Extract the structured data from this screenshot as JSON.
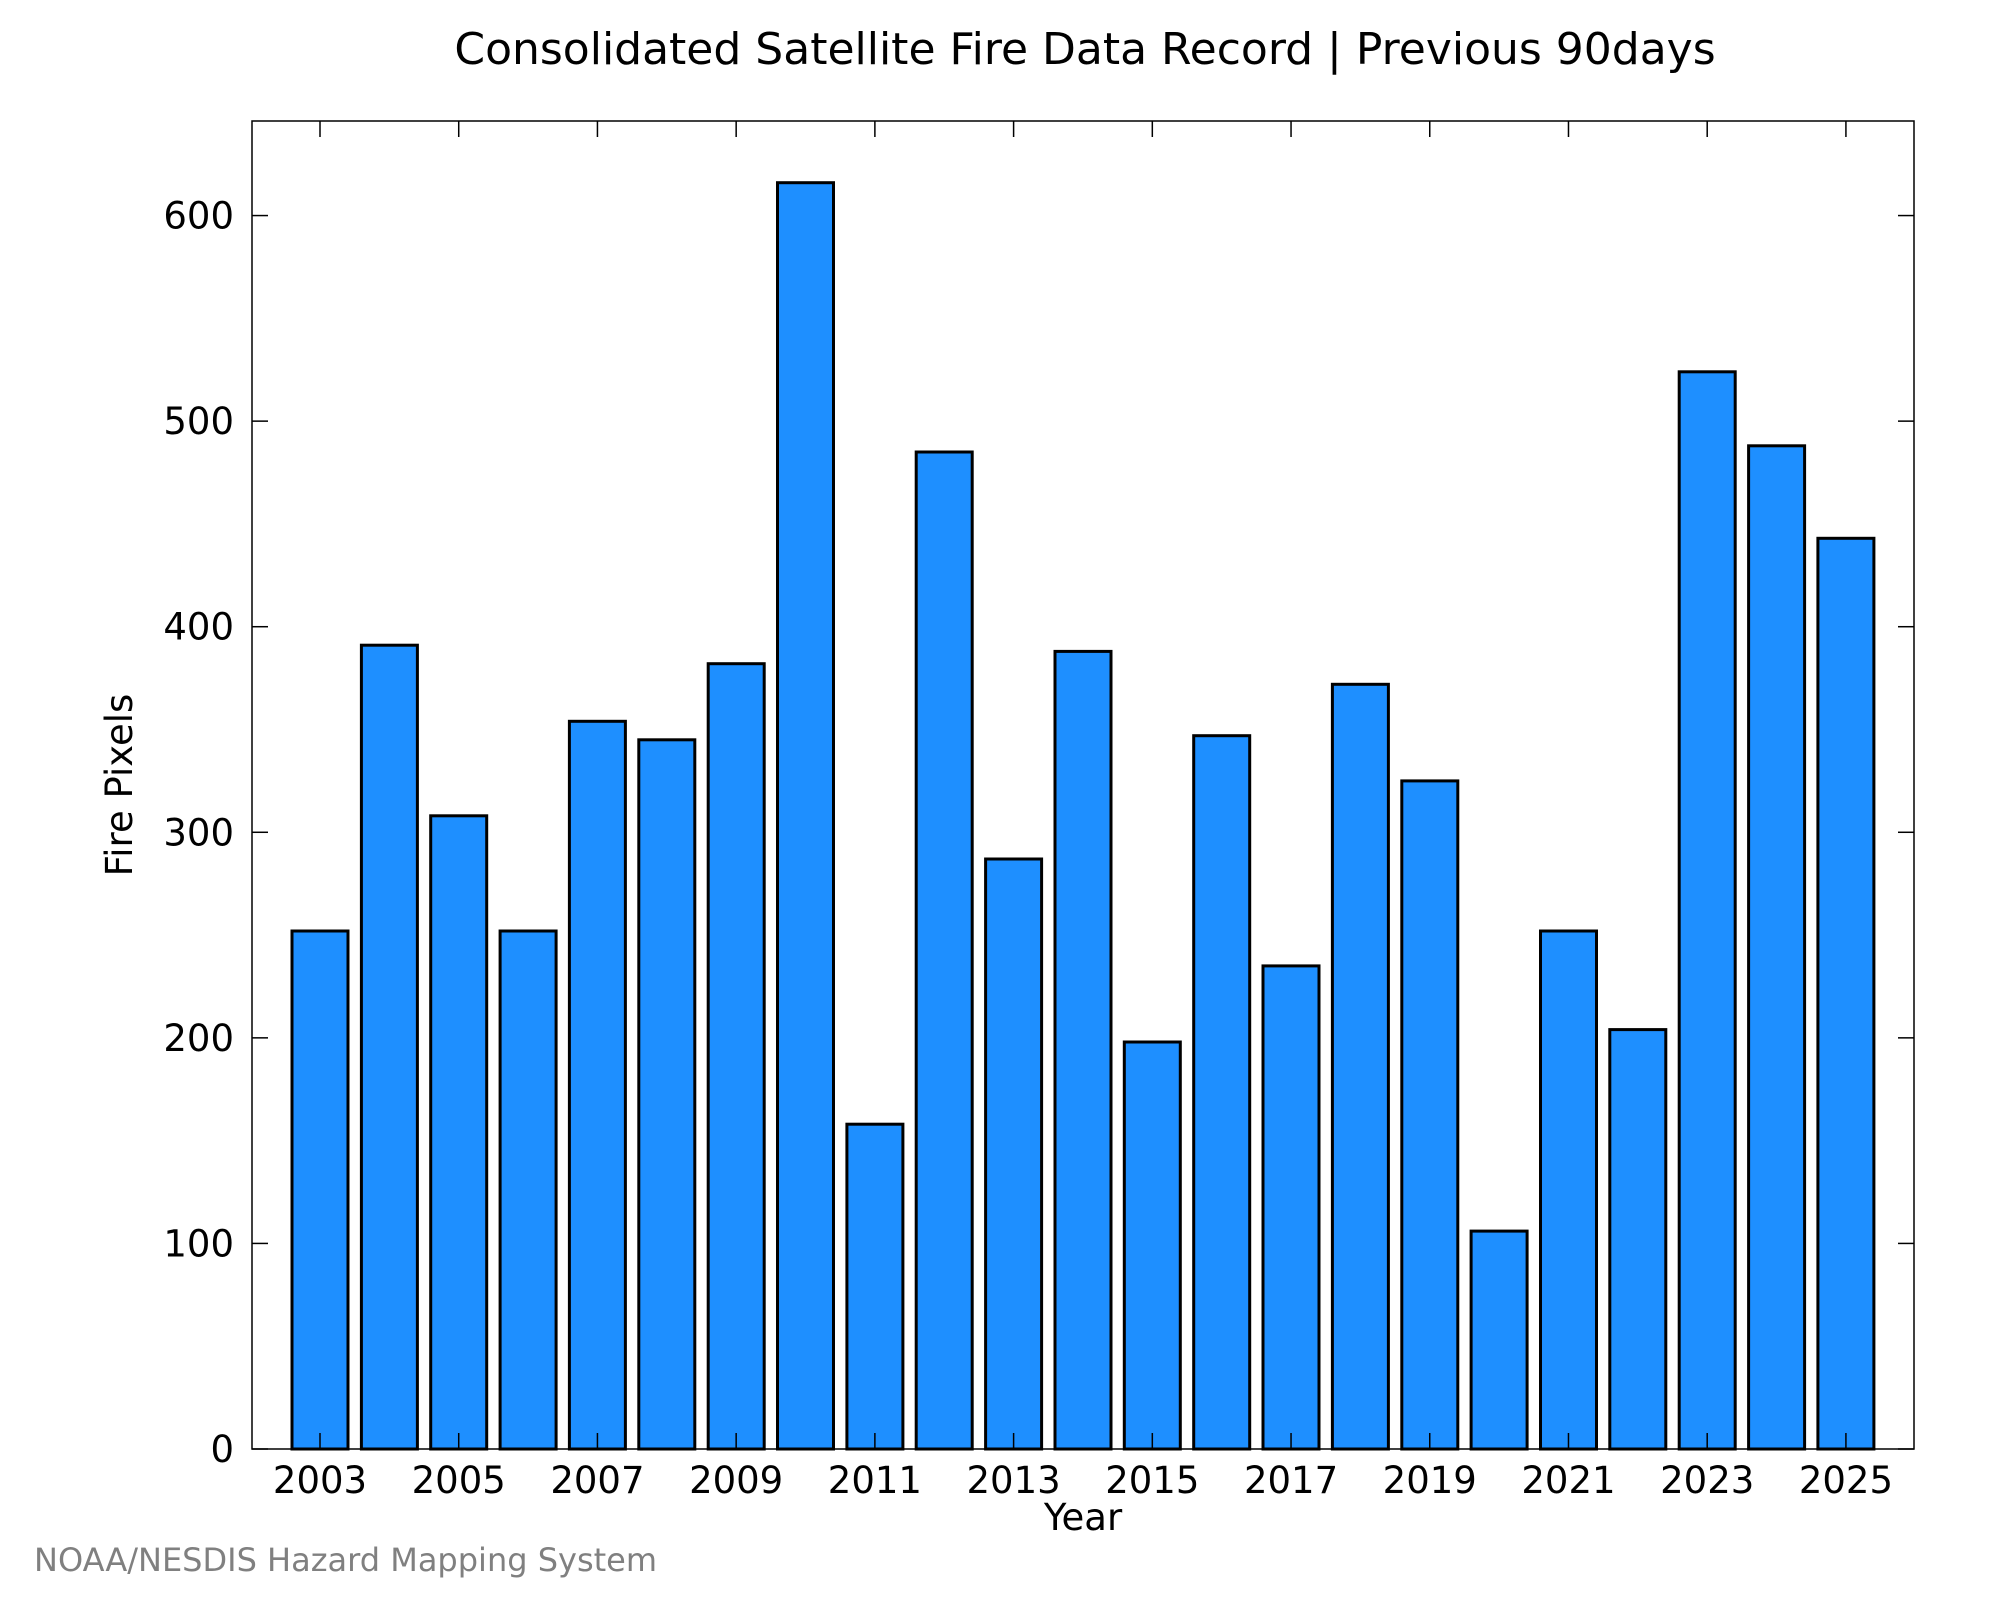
{
  "chart_data": {
    "type": "bar",
    "title": "Consolidated Satellite Fire Data Record | Previous 90days",
    "xlabel": "Year",
    "ylabel": "Fire Pixels",
    "categories": [
      "2003",
      "2004",
      "2005",
      "2006",
      "2007",
      "2008",
      "2009",
      "2010",
      "2011",
      "2012",
      "2013",
      "2014",
      "2015",
      "2016",
      "2017",
      "2018",
      "2019",
      "2020",
      "2021",
      "2022",
      "2023",
      "2024",
      "2025"
    ],
    "values": [
      252,
      391,
      308,
      252,
      354,
      345,
      382,
      616,
      158,
      485,
      287,
      388,
      198,
      347,
      235,
      372,
      325,
      106,
      252,
      204,
      524,
      488,
      443
    ],
    "x_tick_labels": [
      "2003",
      "2005",
      "2007",
      "2009",
      "2011",
      "2013",
      "2015",
      "2017",
      "2019",
      "2021",
      "2023",
      "2025"
    ],
    "y_ticks": [
      0,
      100,
      200,
      300,
      400,
      500,
      600
    ],
    "ylim": [
      0,
      646
    ],
    "grid": false,
    "bar_color": "#1e8fff",
    "bar_edge_color": "#000000"
  },
  "credit": "NOAA/NESDIS Hazard Mapping System"
}
